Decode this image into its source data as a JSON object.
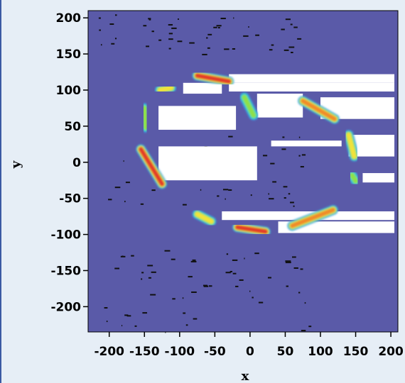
{
  "chart_data": {
    "type": "heatmap",
    "title": "",
    "xlabel": "x",
    "ylabel": "y",
    "xlim": [
      -230,
      210
    ],
    "ylim": [
      -235,
      210
    ],
    "x_ticks": [
      -200,
      -150,
      -100,
      -50,
      0,
      50,
      100,
      150,
      200
    ],
    "x_tick_labels": [
      "-200",
      "-150",
      "-100",
      "-50",
      "0",
      "50",
      "100",
      "150",
      "200"
    ],
    "y_ticks": [
      200,
      150,
      100,
      50,
      0,
      -50,
      -100,
      -150,
      -200
    ],
    "y_tick_labels": [
      "200",
      "150",
      "100",
      "50",
      "0",
      "-50",
      "-100",
      "-150",
      "-200"
    ],
    "grid": false,
    "colormap": [
      "#5a5aa8",
      "#3f8ee0",
      "#2fd6c9",
      "#8ee04a",
      "#f2e23a",
      "#f08a2a",
      "#e23a2a"
    ],
    "background_color": "#5a5aa8",
    "blank_color": "#ffffff",
    "hot_arcs": [
      {
        "x": [
          -75,
          -30
        ],
        "y": [
          120,
          112
        ],
        "peak": 1.0
      },
      {
        "x": [
          -128,
          -112
        ],
        "y": [
          100,
          103
        ],
        "peak": 0.6
      },
      {
        "x": [
          -150,
          -148
        ],
        "y": [
          75,
          48
        ],
        "peak": 0.5
      },
      {
        "x": [
          -8,
          5
        ],
        "y": [
          90,
          65
        ],
        "peak": 0.55
      },
      {
        "x": [
          75,
          120
        ],
        "y": [
          85,
          60
        ],
        "peak": 0.85
      },
      {
        "x": [
          140,
          148
        ],
        "y": [
          38,
          8
        ],
        "peak": 0.6
      },
      {
        "x": [
          -155,
          -125
        ],
        "y": [
          18,
          -30
        ],
        "peak": 0.95
      },
      {
        "x": [
          145,
          150
        ],
        "y": [
          -18,
          -26
        ],
        "peak": 0.5
      },
      {
        "x": [
          -75,
          -55
        ],
        "y": [
          -72,
          -82
        ],
        "peak": 0.7
      },
      {
        "x": [
          -18,
          22
        ],
        "y": [
          -90,
          -96
        ],
        "peak": 1.0
      },
      {
        "x": [
          60,
          118
        ],
        "y": [
          -88,
          -66
        ],
        "peak": 0.8
      }
    ],
    "blank_regions": [
      {
        "x": [
          -95,
          -40
        ],
        "y": [
          110,
          95
        ]
      },
      {
        "x": [
          -30,
          205
        ],
        "y": [
          122,
          110
        ]
      },
      {
        "x": [
          -30,
          205
        ],
        "y": [
          110,
          98
        ]
      },
      {
        "x": [
          10,
          75
        ],
        "y": [
          95,
          62
        ]
      },
      {
        "x": [
          100,
          205
        ],
        "y": [
          90,
          60
        ]
      },
      {
        "x": [
          -130,
          -20
        ],
        "y": [
          78,
          45
        ]
      },
      {
        "x": [
          140,
          205
        ],
        "y": [
          38,
          8
        ]
      },
      {
        "x": [
          -130,
          10
        ],
        "y": [
          22,
          -25
        ]
      },
      {
        "x": [
          30,
          130
        ],
        "y": [
          30,
          22
        ]
      },
      {
        "x": [
          160,
          205
        ],
        "y": [
          -15,
          -28
        ]
      },
      {
        "x": [
          -40,
          205
        ],
        "y": [
          -68,
          -80
        ]
      },
      {
        "x": [
          40,
          205
        ],
        "y": [
          -82,
          -98
        ]
      }
    ]
  }
}
